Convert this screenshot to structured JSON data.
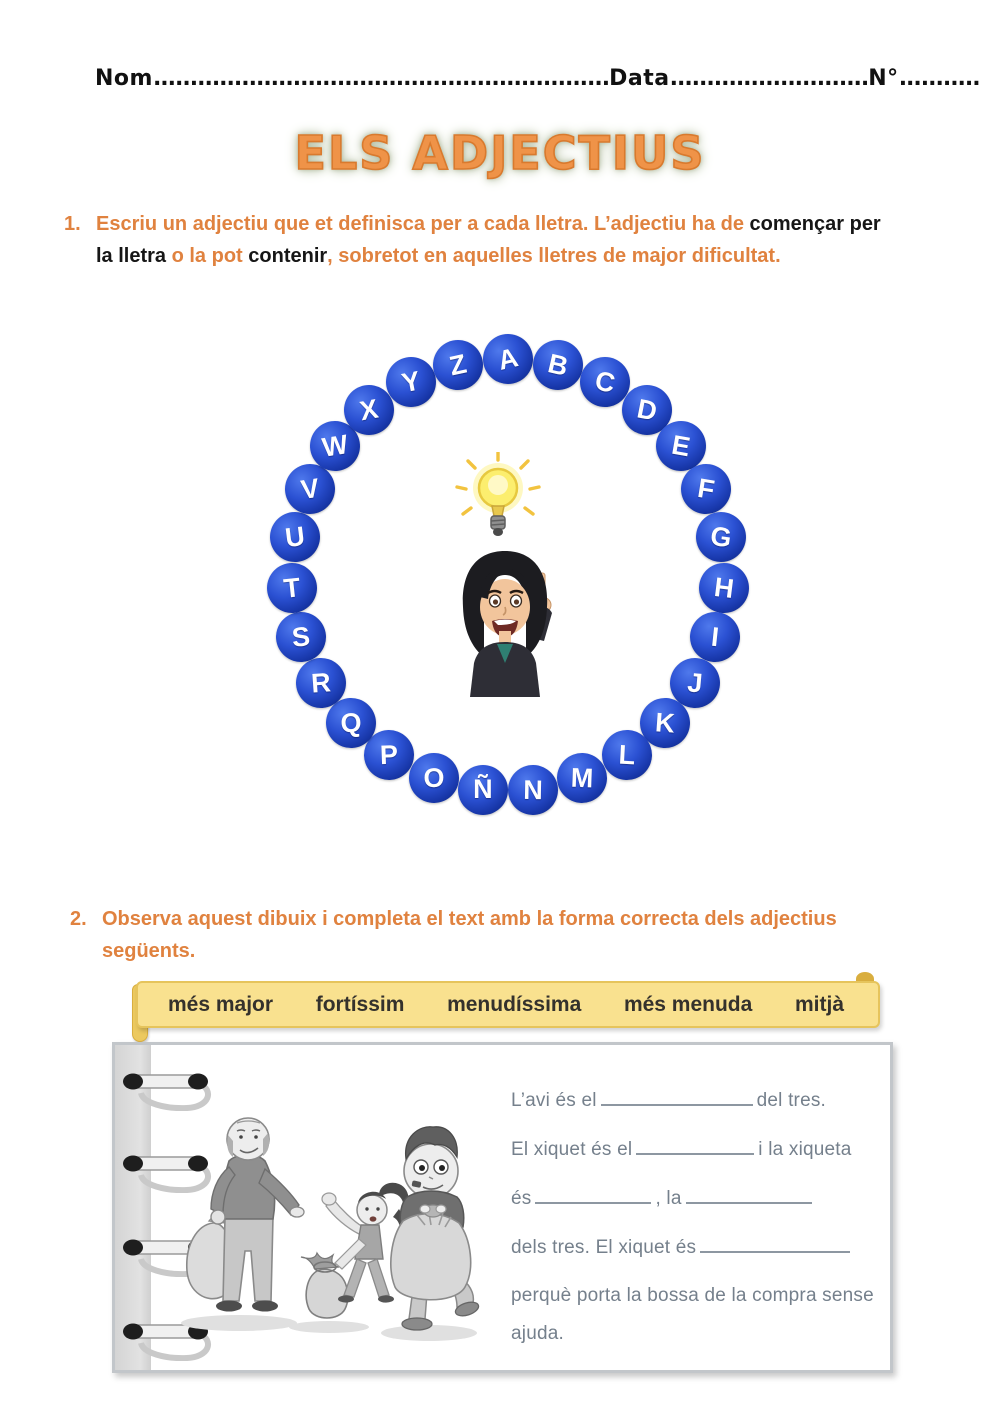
{
  "header": {
    "nom_label": "Nom",
    "nom_dots": "..............................................................",
    "data_label": "Data",
    "data_dots": "...........................",
    "n_label": "N°",
    "n_dots": "..........."
  },
  "title": {
    "text": "ELS ADJECTIUS",
    "color": "#e8823b"
  },
  "exercise1": {
    "number": "1.",
    "seg_intro": "Escriu un adjectiu que et definisca per a cada lletra. L’adjectiu ha de ",
    "seg_bold1": "començar per la lletra",
    "seg_mid": " o la pot ",
    "seg_bold2": "contenir",
    "seg_end": ", sobretot en aquelles lletres de major dificultat."
  },
  "alphabet": {
    "letters": [
      "A",
      "B",
      "C",
      "D",
      "E",
      "F",
      "G",
      "H",
      "I",
      "J",
      "K",
      "L",
      "M",
      "N",
      "Ñ",
      "O",
      "P",
      "Q",
      "R",
      "S",
      "T",
      "U",
      "V",
      "W",
      "X",
      "Y",
      "Z"
    ],
    "ball_color": "#1d3db0"
  },
  "center_icons": {
    "lightbulb": "idea-lightbulb",
    "teacher": "teacher-pointing-up"
  },
  "exercise2": {
    "number": "2.",
    "line1": "Observa aquest dibuix i completa el text amb la forma correcta dels adjectius",
    "line2": "següents."
  },
  "word_bank": {
    "bg": "#f9e18f",
    "words": [
      "més major",
      "fortíssim",
      "menudíssima",
      "més menuda",
      "mitjà"
    ]
  },
  "notebook": {
    "line1_pre": "L’avi és el",
    "line1_post": "del tres.",
    "line2_pre": "El xiquet és el",
    "line2_post": "i la xiqueta",
    "line3_pre": "és",
    "line3_mid": ", la",
    "line4_pre": "dels tres. El xiquet és",
    "line5": "perquè porta la bossa de la compra sense",
    "line6": "ajuda."
  }
}
